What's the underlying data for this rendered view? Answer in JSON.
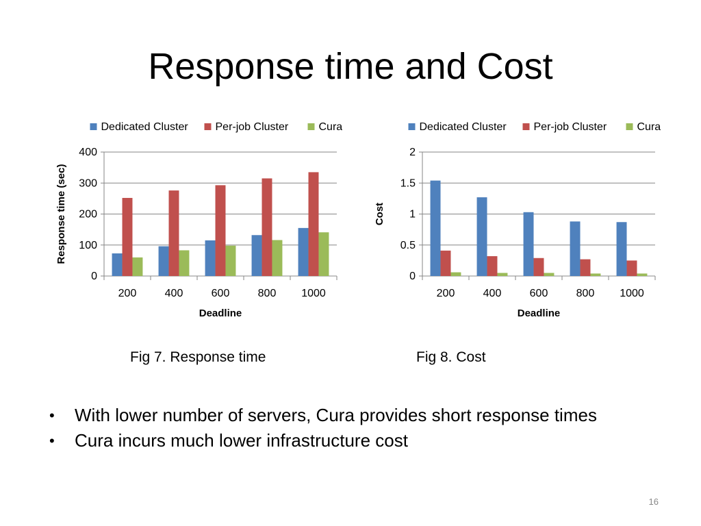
{
  "slide": {
    "title": "Response time and Cost",
    "page_number": "16",
    "bullets": [
      "With lower number of servers, Cura provides short response times",
      "Cura incurs much lower infrastructure cost"
    ]
  },
  "chart_data": [
    {
      "type": "bar",
      "caption": "Fig 7. Response time",
      "categories": [
        "200",
        "400",
        "600",
        "800",
        "1000"
      ],
      "series": [
        {
          "name": "Dedicated Cluster",
          "color": "#4f81bd",
          "values": [
            73,
            96,
            115,
            132,
            155
          ]
        },
        {
          "name": "Per-job Cluster",
          "color": "#c0504d",
          "values": [
            252,
            276,
            293,
            315,
            335
          ]
        },
        {
          "name": "Cura",
          "color": "#9bbb59",
          "values": [
            60,
            83,
            98,
            116,
            141
          ]
        }
      ],
      "xlabel": "Deadline",
      "ylabel": "Response time (sec)",
      "ylim": [
        0,
        400
      ],
      "yticks": [
        "0",
        "100",
        "200",
        "300",
        "400"
      ],
      "grid": true,
      "legend": "top"
    },
    {
      "type": "bar",
      "caption": "Fig 8. Cost",
      "categories": [
        "200",
        "400",
        "600",
        "800",
        "1000"
      ],
      "series": [
        {
          "name": "Dedicated Cluster",
          "color": "#4f81bd",
          "values": [
            1.54,
            1.27,
            1.03,
            0.88,
            0.87
          ]
        },
        {
          "name": "Per-job Cluster",
          "color": "#c0504d",
          "values": [
            0.41,
            0.32,
            0.29,
            0.27,
            0.25
          ]
        },
        {
          "name": "Cura",
          "color": "#9bbb59",
          "values": [
            0.06,
            0.05,
            0.05,
            0.04,
            0.04
          ]
        }
      ],
      "xlabel": "Deadline",
      "ylabel": "Cost",
      "ylim": [
        0,
        2
      ],
      "yticks": [
        "0",
        "0.5",
        "1",
        "1.5",
        "2"
      ],
      "grid": true,
      "legend": "top"
    }
  ]
}
